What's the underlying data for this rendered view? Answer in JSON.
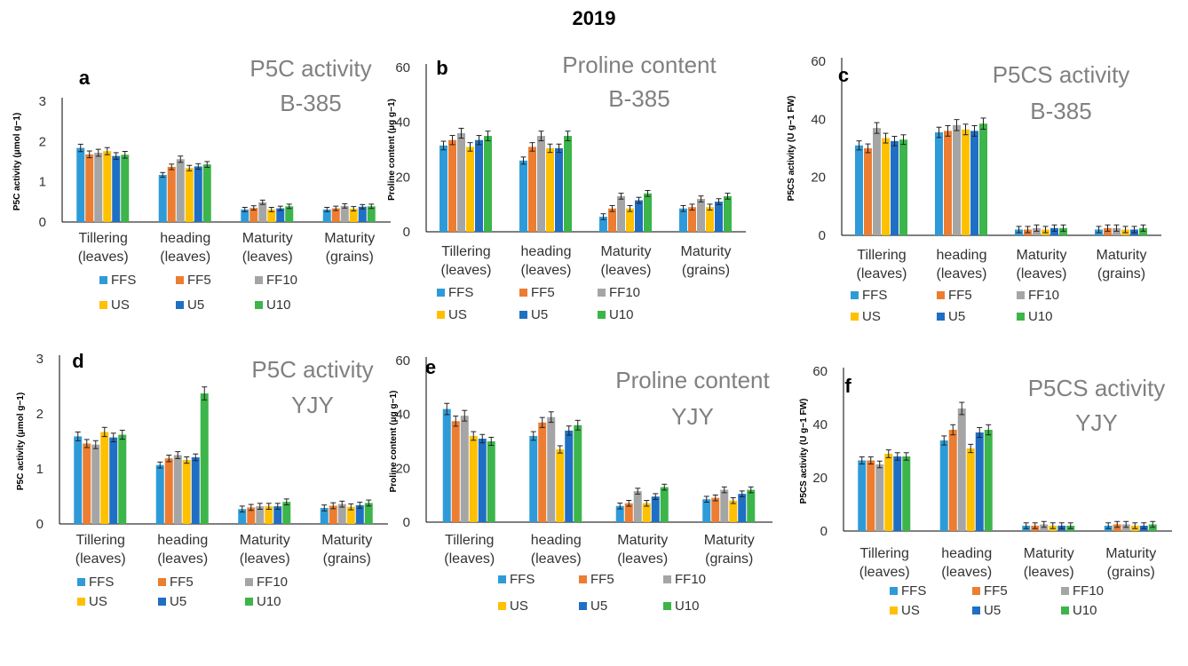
{
  "figure": {
    "title": "2019"
  },
  "chart_data": [
    {
      "type": "bar",
      "panel_label": "a",
      "title": "P5C activity",
      "subtitle": "B-385",
      "ylabel": "P5C activity (μmol g−1)",
      "ylim": [
        0,
        3
      ],
      "yticks": [
        "0",
        "1",
        "2",
        "3"
      ],
      "categories": [
        [
          "Tillering",
          "(leaves)"
        ],
        [
          "heading",
          "(leaves)"
        ],
        [
          "Maturity",
          "(leaves)"
        ],
        [
          "Maturity",
          "(grains)"
        ]
      ],
      "series": [
        {
          "name": "FFS",
          "values": [
            1.84,
            1.17,
            0.31,
            0.31
          ]
        },
        {
          "name": "FF5",
          "values": [
            1.68,
            1.37,
            0.35,
            0.34
          ]
        },
        {
          "name": "FF10",
          "values": [
            1.72,
            1.56,
            0.49,
            0.4
          ]
        },
        {
          "name": "US",
          "values": [
            1.76,
            1.34,
            0.31,
            0.33
          ]
        },
        {
          "name": "U5",
          "values": [
            1.64,
            1.38,
            0.34,
            0.38
          ]
        },
        {
          "name": "U10",
          "values": [
            1.67,
            1.43,
            0.39,
            0.39
          ]
        }
      ]
    },
    {
      "type": "bar",
      "panel_label": "b",
      "title": "Proline content",
      "subtitle": "B-385",
      "ylabel": "Proline content (μg g−1)",
      "ylim": [
        0,
        60
      ],
      "yticks": [
        "0",
        "20",
        "40",
        "60"
      ],
      "categories": [
        [
          "Tillering",
          "(leaves)"
        ],
        [
          "heading",
          "(leaves)"
        ],
        [
          "Maturity",
          "(leaves)"
        ],
        [
          "Maturity",
          "(grains)"
        ]
      ],
      "series": [
        {
          "name": "FFS",
          "values": [
            31.5,
            26.0,
            5.5,
            8.5
          ]
        },
        {
          "name": "FF5",
          "values": [
            33.5,
            31.0,
            8.5,
            9.0
          ]
        },
        {
          "name": "FF10",
          "values": [
            36.0,
            35.0,
            13.0,
            12.0
          ]
        },
        {
          "name": "US",
          "values": [
            31.0,
            30.5,
            8.5,
            9.0
          ]
        },
        {
          "name": "U5",
          "values": [
            33.5,
            30.5,
            11.5,
            11.0
          ]
        },
        {
          "name": "U10",
          "values": [
            35.0,
            35.0,
            14.0,
            13.0
          ]
        }
      ]
    },
    {
      "type": "bar",
      "panel_label": "c",
      "title": "P5CS activity",
      "subtitle": "B-385",
      "ylabel": "P5CS activity (U g−1 FW)",
      "ylim": [
        0,
        60
      ],
      "yticks": [
        "0",
        "20",
        "40",
        "60"
      ],
      "categories": [
        [
          "Tillering",
          "(leaves)"
        ],
        [
          "heading",
          "(leaves)"
        ],
        [
          "Maturity",
          "(leaves)"
        ],
        [
          "Maturity",
          "(grains)"
        ]
      ],
      "series": [
        {
          "name": "FFS",
          "values": [
            31.0,
            35.5,
            2.0,
            2.0
          ]
        },
        {
          "name": "FF5",
          "values": [
            30.0,
            36.0,
            2.0,
            2.5
          ]
        },
        {
          "name": "FF10",
          "values": [
            37.0,
            38.0,
            2.5,
            2.5
          ]
        },
        {
          "name": "US",
          "values": [
            33.5,
            36.5,
            2.0,
            2.0
          ]
        },
        {
          "name": "U5",
          "values": [
            32.5,
            36.0,
            2.5,
            2.0
          ]
        },
        {
          "name": "U10",
          "values": [
            33.0,
            38.5,
            2.5,
            2.5
          ]
        }
      ]
    },
    {
      "type": "bar",
      "panel_label": "d",
      "title": "P5C activity",
      "subtitle": "YJY",
      "ylabel": "P5C activity (μmol g−1)",
      "ylim": [
        0,
        3
      ],
      "yticks": [
        "0",
        "1",
        "2",
        "3"
      ],
      "categories": [
        [
          "Tillering",
          "(leaves)"
        ],
        [
          "heading",
          "(leaves)"
        ],
        [
          "Maturity",
          "(leaves)"
        ],
        [
          "Maturity",
          "(grains)"
        ]
      ],
      "series": [
        {
          "name": "FFS",
          "values": [
            1.59,
            1.07,
            0.27,
            0.29
          ]
        },
        {
          "name": "FF5",
          "values": [
            1.46,
            1.19,
            0.3,
            0.33
          ]
        },
        {
          "name": "FF10",
          "values": [
            1.44,
            1.25,
            0.32,
            0.36
          ]
        },
        {
          "name": "US",
          "values": [
            1.67,
            1.16,
            0.32,
            0.31
          ]
        },
        {
          "name": "U5",
          "values": [
            1.57,
            1.21,
            0.32,
            0.34
          ]
        },
        {
          "name": "U10",
          "values": [
            1.62,
            2.37,
            0.4,
            0.38
          ]
        }
      ]
    },
    {
      "type": "bar",
      "panel_label": "e",
      "title": "Proline content",
      "subtitle": "YJY",
      "ylabel": "Proline content (μg g−1)",
      "ylim": [
        0,
        60
      ],
      "yticks": [
        "0",
        "20",
        "40",
        "60"
      ],
      "categories": [
        [
          "Tillering",
          "(leaves)"
        ],
        [
          "heading",
          "(leaves)"
        ],
        [
          "Maturity",
          "(leaves)"
        ],
        [
          "Maturity",
          "(grains)"
        ]
      ],
      "series": [
        {
          "name": "FFS",
          "values": [
            42.0,
            32.0,
            6.0,
            8.5
          ]
        },
        {
          "name": "FF5",
          "values": [
            37.5,
            37.0,
            7.0,
            9.0
          ]
        },
        {
          "name": "FF10",
          "values": [
            39.5,
            39.0,
            11.5,
            12.0
          ]
        },
        {
          "name": "US",
          "values": [
            32.0,
            27.0,
            7.0,
            8.0
          ]
        },
        {
          "name": "U5",
          "values": [
            31.0,
            34.0,
            9.5,
            10.5
          ]
        },
        {
          "name": "U10",
          "values": [
            30.0,
            36.0,
            13.0,
            12.0
          ]
        }
      ]
    },
    {
      "type": "bar",
      "panel_label": "f",
      "title": "P5CS  activity",
      "subtitle": "YJY",
      "ylabel": "P5CS activity (U g−1 FW)",
      "ylim": [
        0,
        60
      ],
      "yticks": [
        "0",
        "20",
        "40",
        "60"
      ],
      "categories": [
        [
          "Tillering",
          "(leaves)"
        ],
        [
          "heading",
          "(leaves)"
        ],
        [
          "Maturity",
          "(leaves)"
        ],
        [
          "Maturity",
          "(grains)"
        ]
      ],
      "series": [
        {
          "name": "FFS",
          "values": [
            26.5,
            34.0,
            2.0,
            2.0
          ]
        },
        {
          "name": "FF5",
          "values": [
            26.5,
            38.0,
            2.0,
            2.5
          ]
        },
        {
          "name": "FF10",
          "values": [
            25.0,
            46.0,
            2.5,
            2.5
          ]
        },
        {
          "name": "US",
          "values": [
            29.0,
            31.0,
            2.0,
            2.0
          ]
        },
        {
          "name": "U5",
          "values": [
            28.0,
            37.0,
            2.0,
            2.0
          ]
        },
        {
          "name": "U10",
          "values": [
            28.0,
            38.0,
            2.0,
            2.5
          ]
        }
      ]
    }
  ],
  "colors": {
    "FFS": "#2E9BD8",
    "FF5": "#ED7D31",
    "FF10": "#A5A5A5",
    "US": "#FFC000",
    "U5": "#1F6FC5",
    "U10": "#3CB54A"
  }
}
